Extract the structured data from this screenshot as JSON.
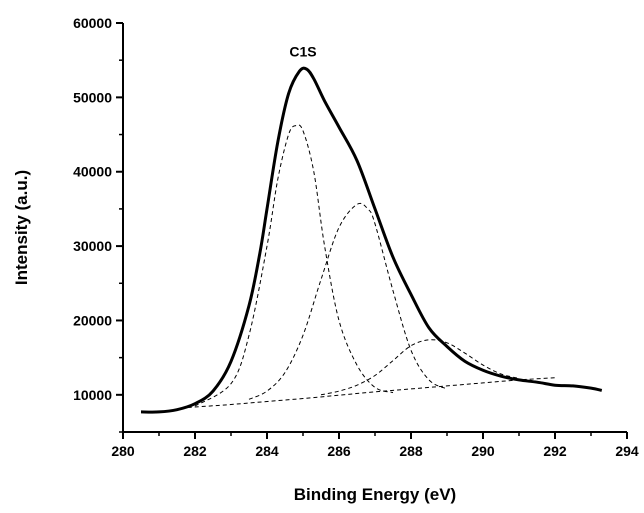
{
  "chart_data": {
    "type": "line",
    "title": "",
    "xlabel": "Binding Energy (eV)",
    "ylabel": "Intensity (a.u.)",
    "xlim": [
      280,
      294
    ],
    "ylim": [
      5000,
      60000
    ],
    "x_ticks": [
      280,
      282,
      284,
      286,
      288,
      290,
      292,
      294
    ],
    "y_ticks": [
      10000,
      20000,
      30000,
      40000,
      50000,
      60000
    ],
    "x_tick_labels": [
      "280",
      "282",
      "284",
      "286",
      "288",
      "290",
      "292",
      "294"
    ],
    "y_tick_labels": [
      "10000",
      "20000",
      "30000",
      "40000",
      "50000",
      "60000"
    ],
    "grid": false,
    "legend": "none",
    "annotations": [
      {
        "text": "C1S",
        "x": 285.0,
        "y": 55500
      }
    ],
    "background": {
      "style": "dashed",
      "x": [
        281.8,
        283,
        284,
        285,
        286,
        287,
        288,
        289,
        290,
        291,
        292
      ],
      "y": [
        8300,
        8700,
        9100,
        9500,
        9950,
        10400,
        10800,
        11200,
        11600,
        12000,
        12300
      ]
    },
    "series": [
      {
        "style": "solid",
        "x": [
          280.5,
          281.0,
          281.5,
          282.0,
          282.5,
          283.0,
          283.5,
          283.8,
          284.0,
          284.3,
          284.6,
          284.9,
          285.1,
          285.3,
          285.6,
          286.0,
          286.5,
          287.0,
          287.5,
          288.0,
          288.5,
          289.0,
          289.5,
          290.0,
          290.5,
          291.0,
          291.5,
          292.0,
          292.5,
          293.0,
          293.3
        ],
        "y": [
          7700,
          7700,
          8000,
          8800,
          10500,
          14500,
          22000,
          29000,
          35000,
          44000,
          50500,
          53500,
          53800,
          52500,
          49500,
          46000,
          41500,
          35000,
          28500,
          23500,
          19000,
          16500,
          14500,
          13300,
          12500,
          12000,
          11700,
          11300,
          11200,
          10900,
          10600
        ]
      },
      {
        "style": "dashed",
        "x": [
          282.0,
          283.0,
          283.5,
          284.0,
          284.3,
          284.6,
          284.8,
          285.0,
          285.3,
          285.6,
          286.0,
          286.5,
          287.0,
          287.5
        ],
        "y": [
          8500,
          11500,
          18000,
          30000,
          39000,
          45000,
          46200,
          45500,
          40000,
          30000,
          20000,
          14000,
          11000,
          10300
        ]
      },
      {
        "style": "dashed",
        "x": [
          283.5,
          284.0,
          284.5,
          285.0,
          285.5,
          286.0,
          286.5,
          286.8,
          287.0,
          287.5,
          288.0,
          288.5,
          289.0
        ],
        "y": [
          9400,
          10500,
          13000,
          18000,
          25500,
          32500,
          35600,
          35000,
          33000,
          24000,
          16000,
          12000,
          10800
        ]
      },
      {
        "style": "dashed",
        "x": [
          285.5,
          286.0,
          286.5,
          287.0,
          287.5,
          288.0,
          288.5,
          289.0,
          289.5,
          290.0,
          290.5,
          291.0
        ],
        "y": [
          10000,
          10500,
          11300,
          12600,
          14600,
          16600,
          17400,
          17000,
          15600,
          14000,
          12800,
          12200
        ]
      }
    ]
  }
}
